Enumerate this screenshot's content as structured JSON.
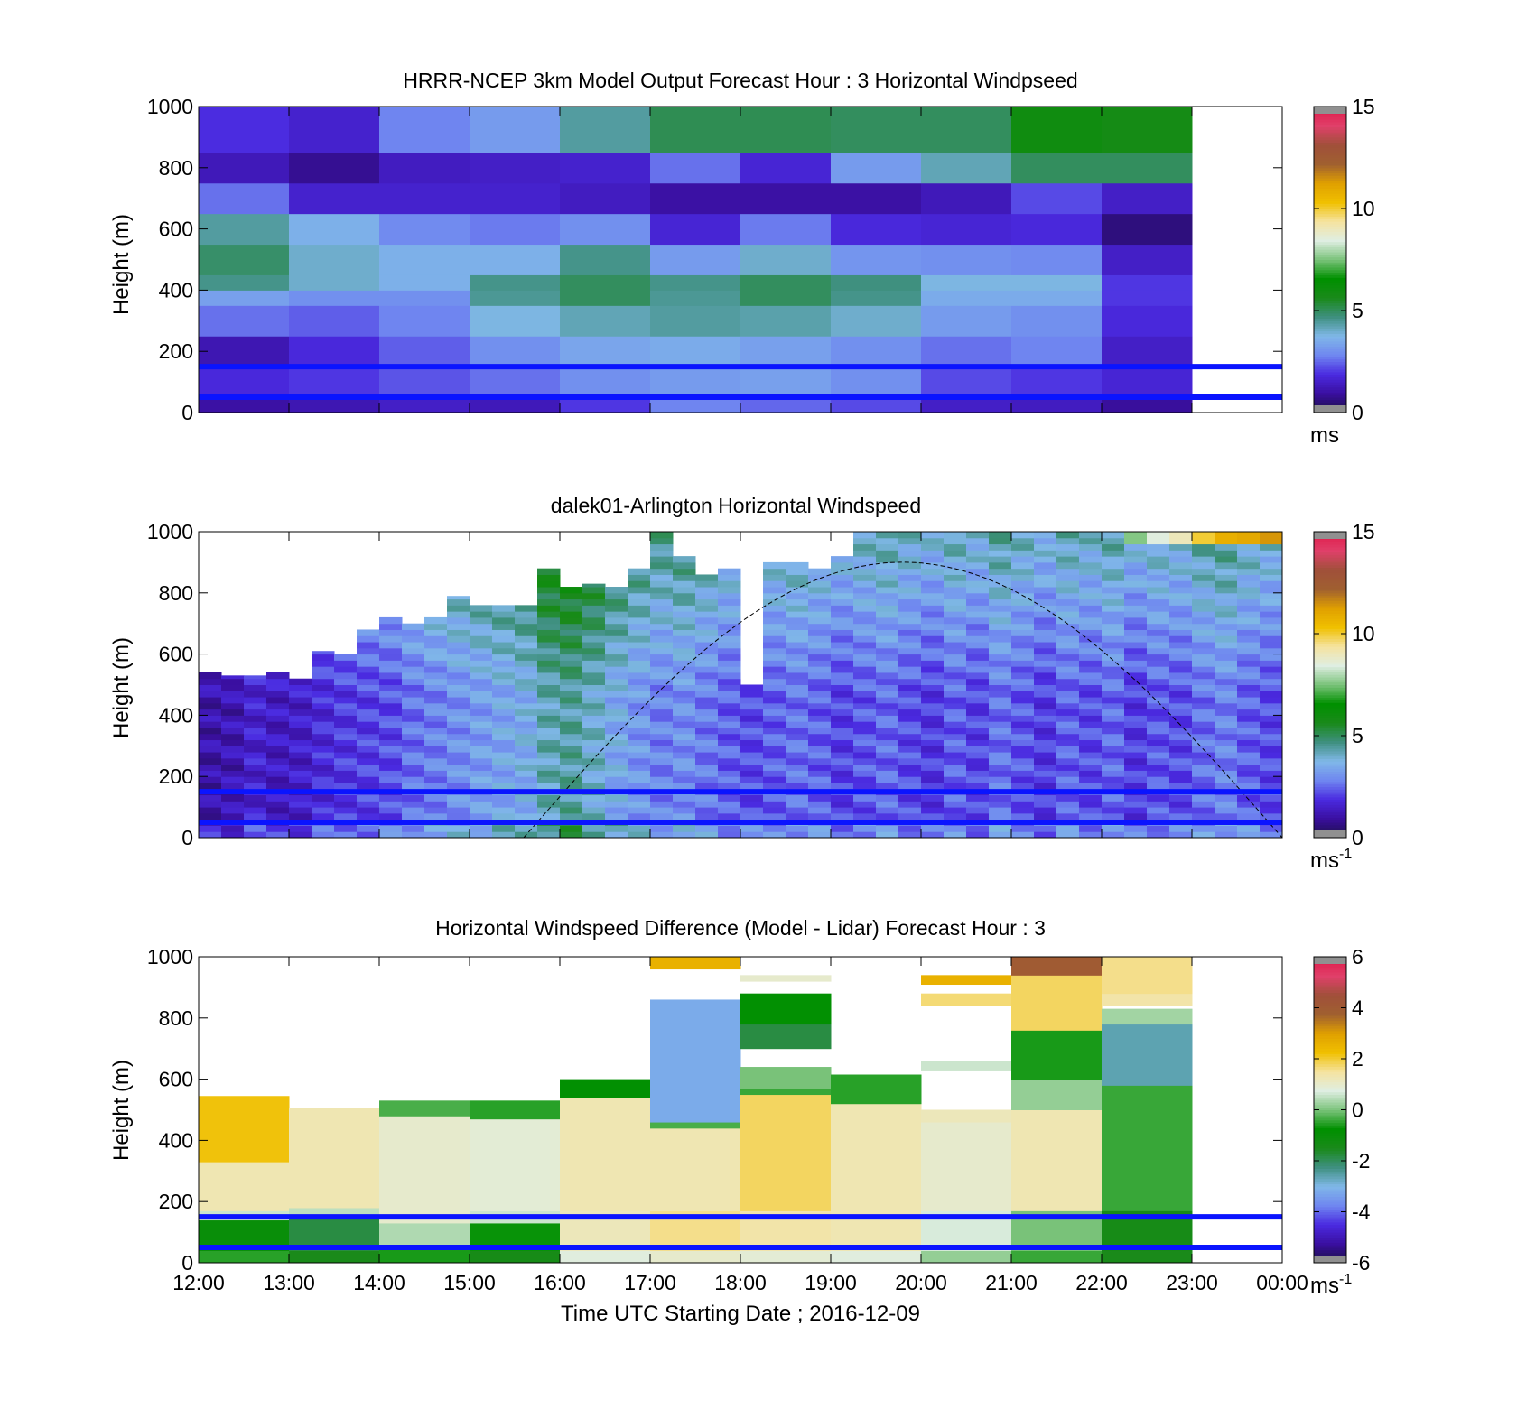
{
  "figure": {
    "xlabel": "Time UTC  Starting Date ; 2016-12-09",
    "x_tick_labels": [
      "12:00",
      "13:00",
      "14:00",
      "15:00",
      "16:00",
      "17:00",
      "18:00",
      "19:00",
      "20:00",
      "21:00",
      "22:00",
      "23:00",
      "00:00"
    ]
  },
  "chart_data": [
    {
      "type": "heatmap",
      "title": "HRRR-NCEP 3km Model Output   Forecast Hour : 3 Horizontal Windpseed",
      "ylabel": "Height (m)",
      "xlim": [
        12,
        24
      ],
      "ylim": [
        0,
        1000
      ],
      "y_tick_labels": [
        "0",
        "200",
        "400",
        "600",
        "800",
        "1000"
      ],
      "colorbar": {
        "ticks": [
          "0",
          "5",
          "10",
          "15"
        ],
        "range": [
          0,
          15
        ],
        "unit": "ms",
        "unit_sup": "",
        "colors": [
          "#1a1040",
          "#3a0fa0",
          "#4a2ae0",
          "#6f86f0",
          "#80b8e8",
          "#3f9080",
          "#1a8a1a",
          "#009000",
          "#79c279",
          "#dfeee2",
          "#f5e3a0",
          "#f0c000",
          "#e0a000",
          "#a06030",
          "#a0503a",
          "#e0406a",
          "#e01848"
        ]
      },
      "reference_lines_m": [
        150,
        50
      ],
      "x_hours": [
        12,
        13,
        14,
        15,
        16,
        17,
        18,
        19,
        20,
        21,
        22
      ],
      "height_bins_m": [
        [
          0,
          50
        ],
        [
          50,
          150
        ],
        [
          150,
          250
        ],
        [
          250,
          350
        ],
        [
          350,
          400
        ],
        [
          400,
          450
        ],
        [
          450,
          550
        ],
        [
          550,
          650
        ],
        [
          650,
          750
        ],
        [
          750,
          850
        ],
        [
          850,
          1000
        ]
      ],
      "values_ms": [
        [
          1.0,
          1.2,
          1.5,
          1.3,
          2.0,
          2.8,
          2.5,
          2.2,
          1.5,
          1.4,
          0.9
        ],
        [
          1.8,
          2.0,
          2.3,
          2.6,
          3.0,
          3.2,
          3.3,
          3.0,
          2.2,
          2.0,
          1.7
        ],
        [
          1.2,
          1.8,
          2.4,
          3.0,
          3.4,
          3.5,
          3.3,
          3.0,
          2.6,
          2.8,
          1.5
        ],
        [
          2.6,
          2.4,
          2.8,
          3.8,
          4.2,
          4.4,
          4.3,
          4.0,
          3.2,
          3.0,
          1.8
        ],
        [
          3.3,
          3.0,
          3.0,
          4.5,
          5.0,
          4.5,
          5.0,
          4.6,
          3.5,
          3.5,
          2.0
        ],
        [
          4.6,
          4.0,
          3.6,
          4.6,
          5.0,
          4.6,
          5.0,
          4.7,
          3.8,
          3.8,
          2.0
        ],
        [
          4.9,
          4.0,
          3.6,
          3.6,
          4.6,
          3.2,
          4.0,
          3.1,
          3.0,
          2.9,
          1.5
        ],
        [
          4.4,
          3.6,
          2.9,
          2.7,
          3.0,
          1.7,
          2.7,
          1.8,
          1.7,
          1.8,
          0.6
        ],
        [
          2.6,
          1.6,
          1.6,
          1.6,
          1.4,
          1.0,
          1.0,
          1.0,
          1.3,
          2.2,
          1.5
        ],
        [
          1.3,
          0.8,
          1.4,
          1.5,
          1.6,
          2.6,
          1.7,
          3.2,
          4.2,
          5.0,
          5.0
        ],
        [
          1.9,
          1.6,
          2.8,
          3.2,
          4.4,
          5.1,
          5.1,
          5.0,
          5.0,
          6.0,
          5.8
        ]
      ]
    },
    {
      "type": "heatmap",
      "title": "dalek01-Arlington  Horizontal Windspeed",
      "ylabel": "Height (m)",
      "xlim": [
        12,
        24
      ],
      "ylim": [
        0,
        1000
      ],
      "y_tick_labels": [
        "0",
        "200",
        "400",
        "600",
        "800",
        "1000"
      ],
      "colorbar": {
        "ticks": [
          "0",
          "5",
          "10",
          "15"
        ],
        "range": [
          0,
          15
        ],
        "unit": "ms",
        "unit_sup": "-1",
        "colors": [
          "#1a1040",
          "#3a0fa0",
          "#4a2ae0",
          "#6f86f0",
          "#80b8e8",
          "#3f9080",
          "#1a8a1a",
          "#009000",
          "#79c279",
          "#dfeee2",
          "#f5e3a0",
          "#f0c000",
          "#e0a000",
          "#a06030",
          "#a0503a",
          "#e0406a",
          "#e01848"
        ]
      },
      "reference_lines_m": [
        150,
        50
      ],
      "overlay_curve": {
        "start_hour": 15.6,
        "peak_hour": 19.8,
        "end_hour": 24,
        "peak_height_m": 900
      },
      "profile_top_m": [
        540,
        530,
        530,
        540,
        520,
        610,
        600,
        680,
        720,
        700,
        720,
        790,
        760,
        760,
        760,
        880,
        820,
        830,
        820,
        880,
        1000,
        920,
        860,
        880,
        500,
        900,
        900,
        880,
        920,
        1000,
        1000,
        1000,
        1000,
        1000,
        1000,
        1000,
        1000,
        1000,
        1000,
        1000,
        1000,
        1000,
        1000,
        1000,
        1000,
        1000,
        1000,
        1000
      ],
      "column_speed_ms": [
        1.1,
        1.2,
        1.6,
        1.4,
        1.5,
        1.8,
        2.0,
        2.1,
        2.2,
        2.6,
        2.8,
        3.0,
        3.2,
        3.4,
        3.6,
        4.2,
        4.4,
        4.0,
        3.5,
        3.1,
        2.8,
        3.0,
        2.7,
        2.4,
        2.2,
        2.4,
        2.6,
        2.4,
        2.1,
        2.3,
        2.5,
        2.2,
        2.0,
        2.4,
        2.1,
        2.6,
        2.3,
        2.0,
        2.4,
        2.2,
        2.5,
        2.0,
        2.3,
        2.2,
        2.6,
        2.8,
        2.4,
        2.2
      ]
    },
    {
      "type": "heatmap",
      "title": "Horizontal Windspeed Difference (Model - Lidar) Forecast Hour : 3",
      "ylabel": "Height (m)",
      "xlim": [
        12,
        24
      ],
      "ylim": [
        0,
        1000
      ],
      "y_tick_labels": [
        "0",
        "200",
        "400",
        "600",
        "800",
        "1000"
      ],
      "colorbar": {
        "ticks": [
          "-6",
          "-4",
          "-2",
          "0",
          "2",
          "4",
          "6"
        ],
        "range": [
          -6,
          6
        ],
        "unit": "ms",
        "unit_sup": "-1",
        "colors": [
          "#1a1040",
          "#3a0fa0",
          "#4a2ae0",
          "#6f86f0",
          "#80b8e8",
          "#3f9080",
          "#1a8a1a",
          "#009000",
          "#79c279",
          "#dfeee2",
          "#f5e3a0",
          "#f0c000",
          "#e0a000",
          "#a06030",
          "#a0503a",
          "#e0406a",
          "#e01848"
        ]
      },
      "reference_lines_m": [
        150,
        50
      ],
      "x_hours": [
        12,
        13,
        14,
        15,
        16,
        17,
        18,
        19,
        20,
        21,
        22
      ],
      "column_top_m": [
        545,
        505,
        530,
        530,
        600,
        870,
        980,
        615,
        1000,
        1000,
        1000
      ],
      "column_bands": [
        [
          [
            0,
            40,
            -0.5
          ],
          [
            40,
            140,
            -1.0
          ],
          [
            140,
            170,
            0.6
          ],
          [
            170,
            330,
            1.3
          ],
          [
            330,
            545,
            2.2
          ]
        ],
        [
          [
            0,
            40,
            -1.5
          ],
          [
            40,
            150,
            -1.8
          ],
          [
            150,
            180,
            0.5
          ],
          [
            180,
            505,
            1.3
          ]
        ],
        [
          [
            0,
            50,
            -0.6
          ],
          [
            50,
            130,
            0.4
          ],
          [
            130,
            170,
            1.0
          ],
          [
            170,
            480,
            1.0
          ],
          [
            480,
            530,
            -0.3
          ]
        ],
        [
          [
            0,
            40,
            -1.4
          ],
          [
            40,
            130,
            -0.7
          ],
          [
            130,
            170,
            0.6
          ],
          [
            170,
            470,
            0.9
          ],
          [
            470,
            530,
            -0.5
          ]
        ],
        [
          [
            0,
            40,
            0.8
          ],
          [
            40,
            170,
            1.2
          ],
          [
            170,
            540,
            1.3
          ],
          [
            540,
            600,
            -0.8
          ]
        ],
        [
          [
            0,
            40,
            1.0
          ],
          [
            40,
            170,
            1.6
          ],
          [
            170,
            440,
            1.3
          ],
          [
            440,
            460,
            -0.3
          ],
          [
            460,
            860,
            -3.2
          ],
          [
            960,
            1000,
            2.6
          ]
        ],
        [
          [
            0,
            40,
            0.9
          ],
          [
            40,
            170,
            1.4
          ],
          [
            170,
            550,
            1.8
          ],
          [
            550,
            570,
            -0.4
          ],
          [
            570,
            640,
            0.0
          ],
          [
            700,
            780,
            -1.8
          ],
          [
            780,
            880,
            -0.8
          ],
          [
            920,
            940,
            1.0
          ]
        ],
        [
          [
            0,
            40,
            0.8
          ],
          [
            40,
            170,
            1.3
          ],
          [
            170,
            520,
            1.3
          ],
          [
            520,
            615,
            -0.5
          ]
        ],
        [
          [
            0,
            40,
            0.2
          ],
          [
            40,
            170,
            0.7
          ],
          [
            170,
            460,
            1.0
          ],
          [
            460,
            500,
            1.2
          ],
          [
            630,
            660,
            0.6
          ],
          [
            840,
            880,
            1.7
          ],
          [
            910,
            940,
            2.6
          ]
        ],
        [
          [
            0,
            40,
            -0.4
          ],
          [
            40,
            170,
            0.0
          ],
          [
            170,
            500,
            1.3
          ],
          [
            500,
            600,
            0.2
          ],
          [
            600,
            760,
            -0.6
          ],
          [
            760,
            940,
            1.8
          ],
          [
            940,
            1000,
            4.0
          ]
        ],
        [
          [
            0,
            40,
            -1.5
          ],
          [
            40,
            170,
            -1.4
          ],
          [
            170,
            580,
            -0.4
          ],
          [
            580,
            780,
            -2.6
          ],
          [
            780,
            830,
            0.3
          ],
          [
            840,
            880,
            1.4
          ],
          [
            880,
            1000,
            1.6
          ]
        ]
      ]
    }
  ]
}
